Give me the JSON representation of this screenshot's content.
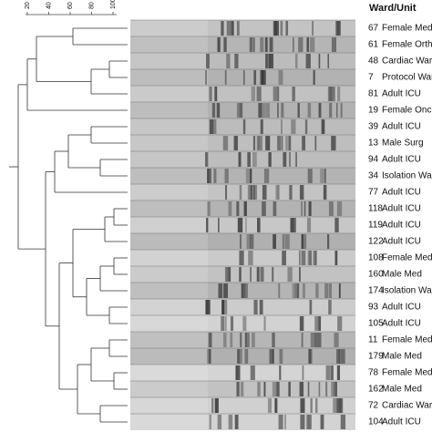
{
  "header": "Ward/Unit",
  "scale": {
    "ticks": [
      20,
      40,
      60,
      80,
      100
    ]
  },
  "rows": [
    {
      "id": "67",
      "unit": "Female Med."
    },
    {
      "id": "61",
      "unit": "Female Ortho"
    },
    {
      "id": "48",
      "unit": "Cardiac Ward"
    },
    {
      "id": "7",
      "unit": "Protocol Ward"
    },
    {
      "id": "81",
      "unit": "Adult ICU"
    },
    {
      "id": "19",
      "unit": "Female Onco"
    },
    {
      "id": "39",
      "unit": "Adult ICU"
    },
    {
      "id": "13",
      "unit": "Male Surg"
    },
    {
      "id": "94",
      "unit": "Adult ICU"
    },
    {
      "id": "34",
      "unit": "Isolation Ward"
    },
    {
      "id": "77",
      "unit": "Adult ICU"
    },
    {
      "id": "118",
      "unit": "Adult ICU"
    },
    {
      "id": "119",
      "unit": "Adult ICU"
    },
    {
      "id": "122",
      "unit": "Adult ICU"
    },
    {
      "id": "108",
      "unit": "Female Med"
    },
    {
      "id": "160",
      "unit": "Male Med"
    },
    {
      "id": "174",
      "unit": "Isolation Ward"
    },
    {
      "id": "93",
      "unit": "Adult ICU"
    },
    {
      "id": "105",
      "unit": "Adult ICU"
    },
    {
      "id": "11",
      "unit": "Female Med"
    },
    {
      "id": "179",
      "unit": "Male Med"
    },
    {
      "id": "78",
      "unit": "Female Med"
    },
    {
      "id": "162",
      "unit": "Male Med"
    },
    {
      "id": "72",
      "unit": "Cardiac Ward"
    },
    {
      "id": "104",
      "unit": "Adult ICU"
    }
  ]
}
